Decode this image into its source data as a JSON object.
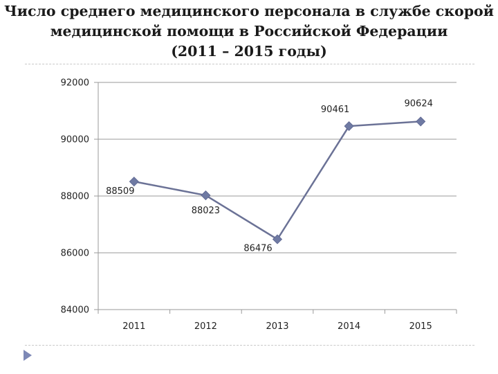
{
  "slide": {
    "title_lines": [
      "Число среднего медицинского персонала в службе скорой",
      "медицинской помощи в Российской Федерации",
      "(2011 – 2015 годы)"
    ]
  },
  "chart_data": {
    "type": "line",
    "categories": [
      "2011",
      "2012",
      "2013",
      "2014",
      "2015"
    ],
    "series": [
      {
        "values": [
          88509,
          88023,
          86476,
          90461,
          90624
        ]
      }
    ],
    "data_labels": [
      "88509",
      "88023",
      "86476",
      "90461",
      "90624"
    ],
    "y_ticks": [
      "84000",
      "86000",
      "88000",
      "90000",
      "92000"
    ],
    "ylim": [
      84000,
      92000
    ],
    "grid": true,
    "marker": "diamond",
    "line_color": "#6b7296",
    "marker_color": "#6f7aa3",
    "grid_color": "#9a9a9a"
  }
}
